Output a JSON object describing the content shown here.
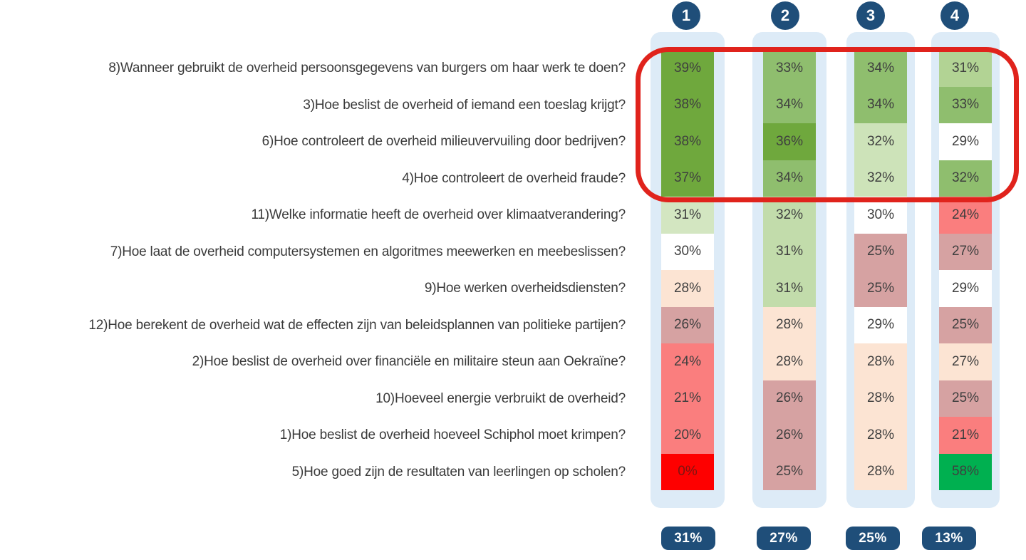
{
  "ui": {
    "track_color": "#ddebf7",
    "badge_color": "#1f4e79",
    "badge_text_color": "#ffffff",
    "highlight_color": "#e0231c",
    "label_text_color": "#3a3a3a",
    "cell_text_color": "#3f3f3f"
  },
  "rows": [
    "8)Wanneer gebruikt de overheid persoonsgegevens van burgers om haar werk te doen?",
    "3)Hoe beslist de overheid of iemand een toeslag krijgt?",
    "6)Hoe controleert de overheid milieuvervuiling door bedrijven?",
    "4)Hoe controleert de overheid fraude?",
    "11)Welke informatie heeft de overheid over klimaatverandering?",
    "7)Hoe laat de overheid computersystemen en algoritmes meewerken en meebeslissen?",
    "9)Hoe werken overheidsdiensten?",
    "12)Hoe berekent de overheid wat de effecten zijn van beleidsplannen van politieke partijen?",
    "2)Hoe beslist de overheid over financiële en militaire steun aan Oekraïne?",
    "10)Hoeveel energie verbruikt de overheid?",
    "1)Hoe beslist de overheid hoeveel Schiphol moet krimpen?",
    "5)Hoe goed zijn de resultaten van leerlingen op scholen?"
  ],
  "columns": [
    {
      "header": "1",
      "total": "31%",
      "cells": [
        {
          "v": "39%",
          "c": "#6fa83d"
        },
        {
          "v": "38%",
          "c": "#6fa83d"
        },
        {
          "v": "38%",
          "c": "#6fa83d"
        },
        {
          "v": "37%",
          "c": "#6fa83d"
        },
        {
          "v": "31%",
          "c": "#d3e6c1"
        },
        {
          "v": "30%",
          "c": "#ffffff"
        },
        {
          "v": "28%",
          "c": "#fce4d3"
        },
        {
          "v": "26%",
          "c": "#d6a2a2"
        },
        {
          "v": "24%",
          "c": "#fa7e7e"
        },
        {
          "v": "21%",
          "c": "#fa7e7e"
        },
        {
          "v": "20%",
          "c": "#fa7e7e"
        },
        {
          "v": "0%",
          "c": "#fe0000",
          "t": "#7d1511"
        }
      ]
    },
    {
      "header": "2",
      "total": "27%",
      "cells": [
        {
          "v": "33%",
          "c": "#8fbe6e"
        },
        {
          "v": "34%",
          "c": "#8fbe6e"
        },
        {
          "v": "36%",
          "c": "#6fa83d"
        },
        {
          "v": "34%",
          "c": "#8fbe6e"
        },
        {
          "v": "32%",
          "c": "#c2dcab"
        },
        {
          "v": "31%",
          "c": "#c2dcab"
        },
        {
          "v": "31%",
          "c": "#c2dcab"
        },
        {
          "v": "28%",
          "c": "#fce4d3"
        },
        {
          "v": "28%",
          "c": "#fce4d3"
        },
        {
          "v": "26%",
          "c": "#d6a2a2"
        },
        {
          "v": "26%",
          "c": "#d6a2a2"
        },
        {
          "v": "25%",
          "c": "#d6a2a2"
        }
      ]
    },
    {
      "header": "3",
      "total": "25%",
      "cells": [
        {
          "v": "34%",
          "c": "#8fbe6e"
        },
        {
          "v": "34%",
          "c": "#8fbe6e"
        },
        {
          "v": "32%",
          "c": "#cde3b9"
        },
        {
          "v": "32%",
          "c": "#cde3b9"
        },
        {
          "v": "30%",
          "c": "#ffffff"
        },
        {
          "v": "25%",
          "c": "#d6a2a2"
        },
        {
          "v": "25%",
          "c": "#d6a2a2"
        },
        {
          "v": "29%",
          "c": "#ffffff"
        },
        {
          "v": "28%",
          "c": "#fce4d3"
        },
        {
          "v": "28%",
          "c": "#fce4d3"
        },
        {
          "v": "28%",
          "c": "#fce4d3"
        },
        {
          "v": "28%",
          "c": "#fce4d3"
        }
      ]
    },
    {
      "header": "4",
      "total": "13%",
      "cells": [
        {
          "v": "31%",
          "c": "#b2d394"
        },
        {
          "v": "33%",
          "c": "#8fbe6e"
        },
        {
          "v": "29%",
          "c": "#ffffff"
        },
        {
          "v": "32%",
          "c": "#8fbe6e"
        },
        {
          "v": "24%",
          "c": "#fa7e7e"
        },
        {
          "v": "27%",
          "c": "#d6a2a2"
        },
        {
          "v": "29%",
          "c": "#ffffff"
        },
        {
          "v": "25%",
          "c": "#d6a2a2"
        },
        {
          "v": "27%",
          "c": "#fce4d3"
        },
        {
          "v": "25%",
          "c": "#d6a2a2"
        },
        {
          "v": "21%",
          "c": "#fa7e7e"
        },
        {
          "v": "58%",
          "c": "#00b050"
        }
      ]
    }
  ],
  "chart_data": {
    "type": "heatmap",
    "title": "",
    "rows": [
      "8)Wanneer gebruikt de overheid persoonsgegevens van burgers om haar werk te doen?",
      "3)Hoe beslist de overheid of iemand een toeslag krijgt?",
      "6)Hoe controleert de overheid milieuvervuiling door bedrijven?",
      "4)Hoe controleert de overheid fraude?",
      "11)Welke informatie heeft de overheid over klimaatverandering?",
      "7)Hoe laat de overheid computersystemen en algoritmes meewerken en meebeslissen?",
      "9)Hoe werken overheidsdiensten?",
      "12)Hoe berekent de overheid wat de effecten zijn van beleidsplannen van politieke partijen?",
      "2)Hoe beslist de overheid over financiële en militaire steun aan Oekraïne?",
      "10)Hoeveel energie verbruikt de overheid?",
      "1)Hoe beslist de overheid hoeveel Schiphol moet krimpen?",
      "5)Hoe goed zijn de resultaten van leerlingen op scholen?"
    ],
    "columns": [
      "1",
      "2",
      "3",
      "4"
    ],
    "values_percent": [
      [
        39,
        33,
        34,
        31
      ],
      [
        38,
        34,
        34,
        33
      ],
      [
        38,
        36,
        32,
        29
      ],
      [
        37,
        34,
        32,
        32
      ],
      [
        31,
        32,
        30,
        24
      ],
      [
        30,
        31,
        25,
        27
      ],
      [
        28,
        31,
        25,
        29
      ],
      [
        26,
        28,
        29,
        25
      ],
      [
        24,
        28,
        28,
        27
      ],
      [
        21,
        26,
        28,
        25
      ],
      [
        20,
        26,
        28,
        21
      ],
      [
        0,
        25,
        28,
        58
      ]
    ],
    "column_totals_percent": [
      31,
      27,
      25,
      13
    ],
    "color_scale": "green (high) to white to red (low)",
    "annotation": "red rounded rectangle highlighting the top 4 rows across all 4 columns",
    "legend": "none",
    "grid": "off"
  }
}
